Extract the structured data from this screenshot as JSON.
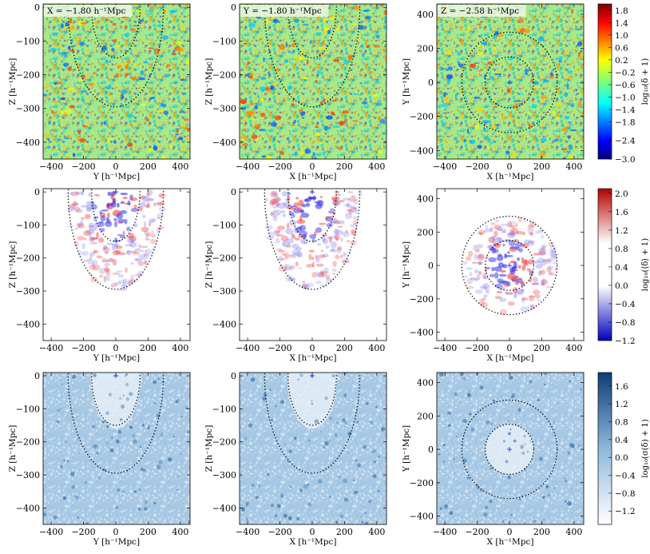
{
  "figure": {
    "axis_unit_label": "[h⁻¹Mpc]"
  },
  "chart_data": [
    {
      "type": "heatmap",
      "row": "delta_field",
      "column": "YZ-slice",
      "slice_label": "X = −1.80 h⁻¹Mpc",
      "xlabel": "Y [h⁻¹Mpc]",
      "ylabel": "Z [h⁻¹Mpc]",
      "xlim": [
        -450,
        460
      ],
      "ylim": [
        -450,
        10
      ],
      "xticks": [
        -400,
        -200,
        0,
        200,
        400
      ],
      "yticks": [
        0,
        -100,
        -200,
        -300,
        -400
      ],
      "colormap": "jet",
      "overlay": "two dotted half-ellipses centred at origin, radii about 150 and 295"
    },
    {
      "type": "heatmap",
      "row": "delta_field",
      "column": "XZ-slice",
      "slice_label": "Y = −1.80 h⁻¹Mpc",
      "xlabel": "X [h⁻¹Mpc]",
      "ylabel": "Z [h⁻¹Mpc]",
      "xlim": [
        -450,
        460
      ],
      "ylim": [
        -450,
        10
      ],
      "xticks": [
        -400,
        -200,
        0,
        200,
        400
      ],
      "yticks": [
        0,
        -100,
        -200,
        -300,
        -400
      ],
      "colormap": "jet"
    },
    {
      "type": "heatmap",
      "row": "delta_field",
      "column": "XY-slice",
      "slice_label": "Z = −2.58 h⁻¹Mpc",
      "xlabel": "X [h⁻¹Mpc]",
      "ylabel": "Y [h⁻¹Mpc]",
      "xlim": [
        -450,
        460
      ],
      "ylim": [
        -450,
        460
      ],
      "xticks": [
        -400,
        -200,
        0,
        200,
        400
      ],
      "yticks": [
        400,
        200,
        0,
        -200,
        -400
      ],
      "colormap": "jet",
      "colorbar": {
        "label": "log₁₀(δ + 1)",
        "ticks": [
          "1.8",
          "1.4",
          "1.0",
          "0.6",
          "0.2",
          "−0.2",
          "−0.6",
          "−1.0",
          "−1.4",
          "−1.8",
          "−2.4",
          "−3.0"
        ],
        "range": [
          -3.0,
          2.0
        ]
      }
    },
    {
      "type": "heatmap",
      "row": "mean_delta",
      "column": "YZ-slice",
      "xlabel": "Y [h⁻¹Mpc]",
      "ylabel": "Z [h⁻¹Mpc]",
      "xlim": [
        -450,
        460
      ],
      "ylim": [
        -450,
        10
      ],
      "xticks": [
        -400,
        -200,
        0,
        200,
        400
      ],
      "yticks": [
        0,
        -100,
        -200,
        -300,
        -400
      ],
      "colormap": "blue-white-red"
    },
    {
      "type": "heatmap",
      "row": "mean_delta",
      "column": "XZ-slice",
      "xlabel": "X [h⁻¹Mpc]",
      "ylabel": "Z [h⁻¹Mpc]",
      "xlim": [
        -450,
        460
      ],
      "ylim": [
        -450,
        10
      ],
      "xticks": [
        -400,
        -200,
        0,
        200,
        400
      ],
      "yticks": [
        0,
        -100,
        -200,
        -300,
        -400
      ],
      "colormap": "blue-white-red"
    },
    {
      "type": "heatmap",
      "row": "mean_delta",
      "column": "XY-slice",
      "xlabel": "X [h⁻¹Mpc]",
      "ylabel": "Y [h⁻¹Mpc]",
      "xlim": [
        -450,
        460
      ],
      "ylim": [
        -450,
        460
      ],
      "xticks": [
        -400,
        -200,
        0,
        200,
        400
      ],
      "yticks": [
        400,
        200,
        0,
        -200,
        -400
      ],
      "colormap": "blue-white-red",
      "colorbar": {
        "label": "log₁₀(⟨δ⟩ + 1)",
        "ticks": [
          "2.0",
          "1.6",
          "1.2",
          "0.8",
          "0.4",
          "0.0",
          "−0.4",
          "−0.8",
          "−1.2"
        ],
        "range": [
          -1.2,
          2.1
        ]
      }
    },
    {
      "type": "heatmap",
      "row": "sigma_delta",
      "column": "YZ-slice",
      "xlabel": "Y [h⁻¹Mpc]",
      "ylabel": "Z [h⁻¹Mpc]",
      "xlim": [
        -450,
        460
      ],
      "ylim": [
        -450,
        10
      ],
      "xticks": [
        -400,
        -200,
        0,
        200,
        400
      ],
      "yticks": [
        0,
        -100,
        -200,
        -300,
        -400
      ],
      "colormap": "blues"
    },
    {
      "type": "heatmap",
      "row": "sigma_delta",
      "column": "XZ-slice",
      "xlabel": "X [h⁻¹Mpc]",
      "ylabel": "Z [h⁻¹Mpc]",
      "xlim": [
        -450,
        460
      ],
      "ylim": [
        -450,
        10
      ],
      "xticks": [
        -400,
        -200,
        0,
        200,
        400
      ],
      "yticks": [
        0,
        -100,
        -200,
        -300,
        -400
      ],
      "colormap": "blues"
    },
    {
      "type": "heatmap",
      "row": "sigma_delta",
      "column": "XY-slice",
      "xlabel": "X [h⁻¹Mpc]",
      "ylabel": "Y [h⁻¹Mpc]",
      "xlim": [
        -450,
        460
      ],
      "ylim": [
        -450,
        460
      ],
      "xticks": [
        -400,
        -200,
        0,
        200,
        400
      ],
      "yticks": [
        400,
        200,
        0,
        -200,
        -400
      ],
      "colormap": "blues",
      "colorbar": {
        "label": "log₁₀(σ(δ) + 1)",
        "ticks": [
          "1.6",
          "1.2",
          "0.8",
          "0.4",
          "0.0",
          "−0.4",
          "−0.8",
          "−1.2"
        ],
        "range": [
          -1.5,
          1.9
        ]
      }
    }
  ]
}
